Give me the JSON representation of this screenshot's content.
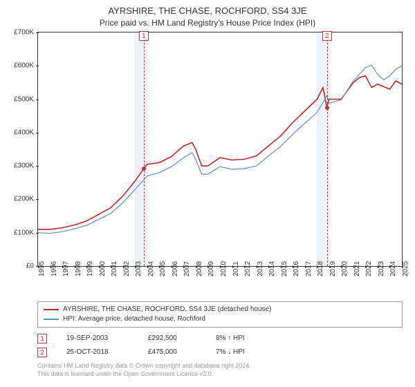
{
  "title": "AYRSHIRE, THE CHASE, ROCHFORD, SS4 3JE",
  "subtitle": "Price paid vs. HM Land Registry's House Price Index (HPI)",
  "chart": {
    "type": "line",
    "ylim": [
      0,
      700000
    ],
    "ytick_step": 100000,
    "ylabels": [
      "£0",
      "£100K",
      "£200K",
      "£300K",
      "£400K",
      "£500K",
      "£600K",
      "£700K"
    ],
    "xlim": [
      1995,
      2025
    ],
    "xticks": [
      1995,
      1996,
      1997,
      1998,
      1999,
      2000,
      2001,
      2002,
      2003,
      2004,
      2005,
      2006,
      2007,
      2008,
      2009,
      2010,
      2011,
      2012,
      2013,
      2014,
      2015,
      2016,
      2017,
      2018,
      2019,
      2020,
      2021,
      2022,
      2023,
      2024,
      2025
    ],
    "background_color": "#ffffff",
    "axis_color": "#333333",
    "series": [
      {
        "name": "property",
        "label": "AYRSHIRE, THE CHASE, ROCHFORD, SS4 3JE (detached house)",
        "color": "#cc2222",
        "width": 1.6,
        "data": [
          [
            1995,
            110000
          ],
          [
            1996,
            110000
          ],
          [
            1997,
            115000
          ],
          [
            1998,
            123000
          ],
          [
            1999,
            135000
          ],
          [
            2000,
            155000
          ],
          [
            2001,
            175000
          ],
          [
            2002,
            210000
          ],
          [
            2003,
            255000
          ],
          [
            2003.72,
            292500
          ],
          [
            2004,
            305000
          ],
          [
            2005,
            310000
          ],
          [
            2006,
            328000
          ],
          [
            2007,
            360000
          ],
          [
            2007.7,
            370000
          ],
          [
            2008,
            350000
          ],
          [
            2008.5,
            300000
          ],
          [
            2009,
            300000
          ],
          [
            2010,
            325000
          ],
          [
            2011,
            318000
          ],
          [
            2012,
            320000
          ],
          [
            2013,
            330000
          ],
          [
            2014,
            360000
          ],
          [
            2015,
            390000
          ],
          [
            2016,
            430000
          ],
          [
            2017,
            465000
          ],
          [
            2018,
            500000
          ],
          [
            2018.5,
            535000
          ],
          [
            2018.82,
            475000
          ],
          [
            2019,
            500000
          ],
          [
            2020,
            500000
          ],
          [
            2021,
            550000
          ],
          [
            2021.5,
            565000
          ],
          [
            2022,
            570000
          ],
          [
            2022.5,
            535000
          ],
          [
            2023,
            545000
          ],
          [
            2024,
            530000
          ],
          [
            2024.5,
            555000
          ],
          [
            2025,
            545000
          ]
        ]
      },
      {
        "name": "hpi",
        "label": "HPI: Average price, detached house, Rochford",
        "color": "#5b8fc7",
        "width": 1.2,
        "data": [
          [
            1995,
            100000
          ],
          [
            1996,
            98000
          ],
          [
            1997,
            103000
          ],
          [
            1998,
            112000
          ],
          [
            1999,
            122000
          ],
          [
            2000,
            140000
          ],
          [
            2001,
            158000
          ],
          [
            2002,
            190000
          ],
          [
            2003,
            230000
          ],
          [
            2004,
            270000
          ],
          [
            2005,
            280000
          ],
          [
            2006,
            298000
          ],
          [
            2007,
            325000
          ],
          [
            2007.7,
            340000
          ],
          [
            2008,
            320000
          ],
          [
            2008.5,
            275000
          ],
          [
            2009,
            275000
          ],
          [
            2010,
            298000
          ],
          [
            2011,
            290000
          ],
          [
            2012,
            292000
          ],
          [
            2013,
            300000
          ],
          [
            2014,
            330000
          ],
          [
            2015,
            358000
          ],
          [
            2016,
            395000
          ],
          [
            2017,
            428000
          ],
          [
            2018,
            460000
          ],
          [
            2018.82,
            510000
          ],
          [
            2019,
            488000
          ],
          [
            2020,
            498000
          ],
          [
            2021,
            555000
          ],
          [
            2022,
            595000
          ],
          [
            2022.5,
            602000
          ],
          [
            2023,
            575000
          ],
          [
            2023.5,
            558000
          ],
          [
            2024,
            570000
          ],
          [
            2024.5,
            590000
          ],
          [
            2025,
            600000
          ]
        ]
      }
    ],
    "shade_bands": [
      {
        "from": 2003,
        "to": 2004
      },
      {
        "from": 2018,
        "to": 2019
      }
    ],
    "markers": [
      {
        "num": "1",
        "x": 2003.72,
        "y": 292500
      },
      {
        "num": "2",
        "x": 2018.82,
        "y": 475000
      }
    ],
    "marker_color": "#cc3333",
    "shade_color": "rgba(173,200,230,0.25)"
  },
  "legend": {
    "items": [
      {
        "color": "#cc2222",
        "label": "AYRSHIRE, THE CHASE, ROCHFORD, SS4 3JE (detached house)"
      },
      {
        "color": "#5b8fc7",
        "label": "HPI: Average price, detached house, Rochford"
      }
    ]
  },
  "transactions": [
    {
      "num": "1",
      "date": "19-SEP-2003",
      "price": "£292,500",
      "diff": "8%",
      "arrow": "↑",
      "suffix": "HPI"
    },
    {
      "num": "2",
      "date": "25-OCT-2018",
      "price": "£475,000",
      "diff": "7%",
      "arrow": "↓",
      "suffix": "HPI"
    }
  ],
  "footer": {
    "line1": "Contains HM Land Registry data © Crown copyright and database right 2024.",
    "line2": "This data is licensed under the Open Government Licence v3.0."
  }
}
